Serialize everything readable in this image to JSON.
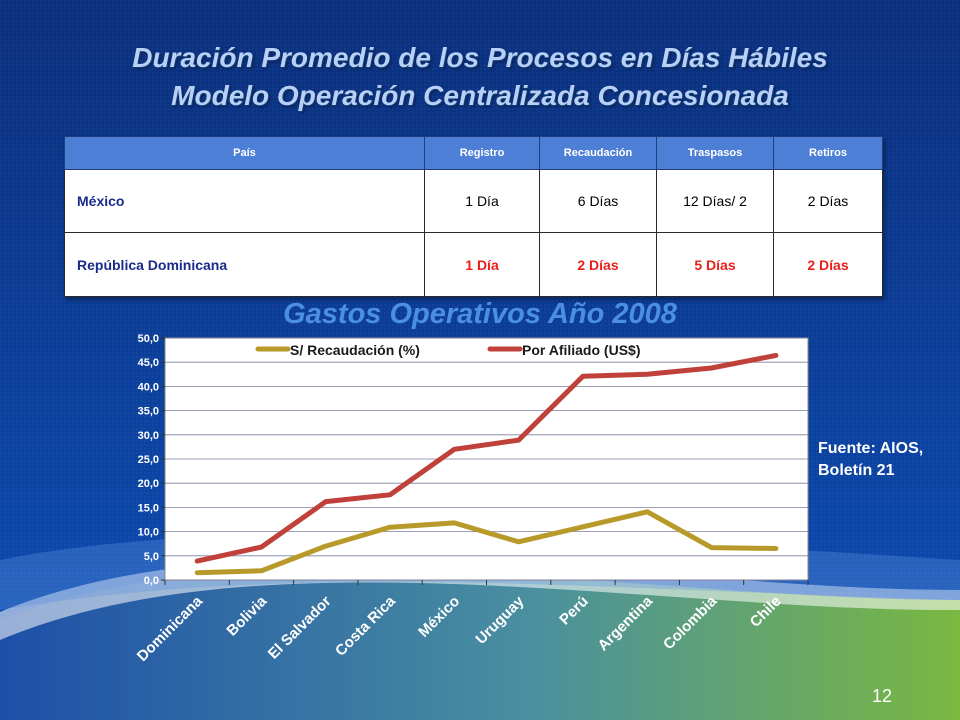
{
  "slide": {
    "title_line1": "Duración Promedio de los Procesos en Días Hábiles",
    "title_line2": "Modelo Operación Centralizada Concesionada",
    "source": "Fuente: AIOS, Boletín 21",
    "page_number": "12"
  },
  "table": {
    "headers": [
      "País",
      "Registro",
      "Recaudación",
      "Traspasos",
      "Retiros"
    ],
    "rows": [
      {
        "country": "México",
        "cells": [
          "1 Día",
          "6 Días",
          "12 Días/ 2",
          "2 Días"
        ]
      },
      {
        "country": "República Dominicana",
        "cells": [
          "1 Día",
          "2 Días",
          "5 Días",
          "2 Días"
        ]
      }
    ]
  },
  "colors": {
    "background": "#0a3f9a",
    "header_fill": "#4d7fd6",
    "highlight_red": "#e8201a",
    "series_gold": "#b89a2a",
    "series_red": "#c0403a",
    "chart_title": "#4a8fe0"
  },
  "chart_data": {
    "type": "line",
    "title": "Gastos Operativos Año 2008",
    "xlabel": "",
    "ylabel": "",
    "categories": [
      "Dominicana",
      "Bolivia",
      "El Salvador",
      "Costa Rica",
      "México",
      "Uruguay",
      "Perú",
      "Argentina",
      "Colombia",
      "Chile"
    ],
    "ylim": [
      0,
      50
    ],
    "yticks": [
      "0,0",
      "5,0",
      "10,0",
      "15,0",
      "20,0",
      "25,0",
      "30,0",
      "35,0",
      "40,0",
      "45,0",
      "50,0"
    ],
    "grid": true,
    "legend": "top-center",
    "series": [
      {
        "name": "S/ Recaudación (%)",
        "color": "#b89a2a",
        "values": [
          1.5,
          1.9,
          7.0,
          10.9,
          11.8,
          7.9,
          11.0,
          14.1,
          6.7,
          6.5
        ]
      },
      {
        "name": "Por Afiliado (US$)",
        "color": "#c0403a",
        "values": [
          3.9,
          6.8,
          16.2,
          17.6,
          27.0,
          28.9,
          42.1,
          42.5,
          43.8,
          46.4
        ]
      }
    ]
  }
}
